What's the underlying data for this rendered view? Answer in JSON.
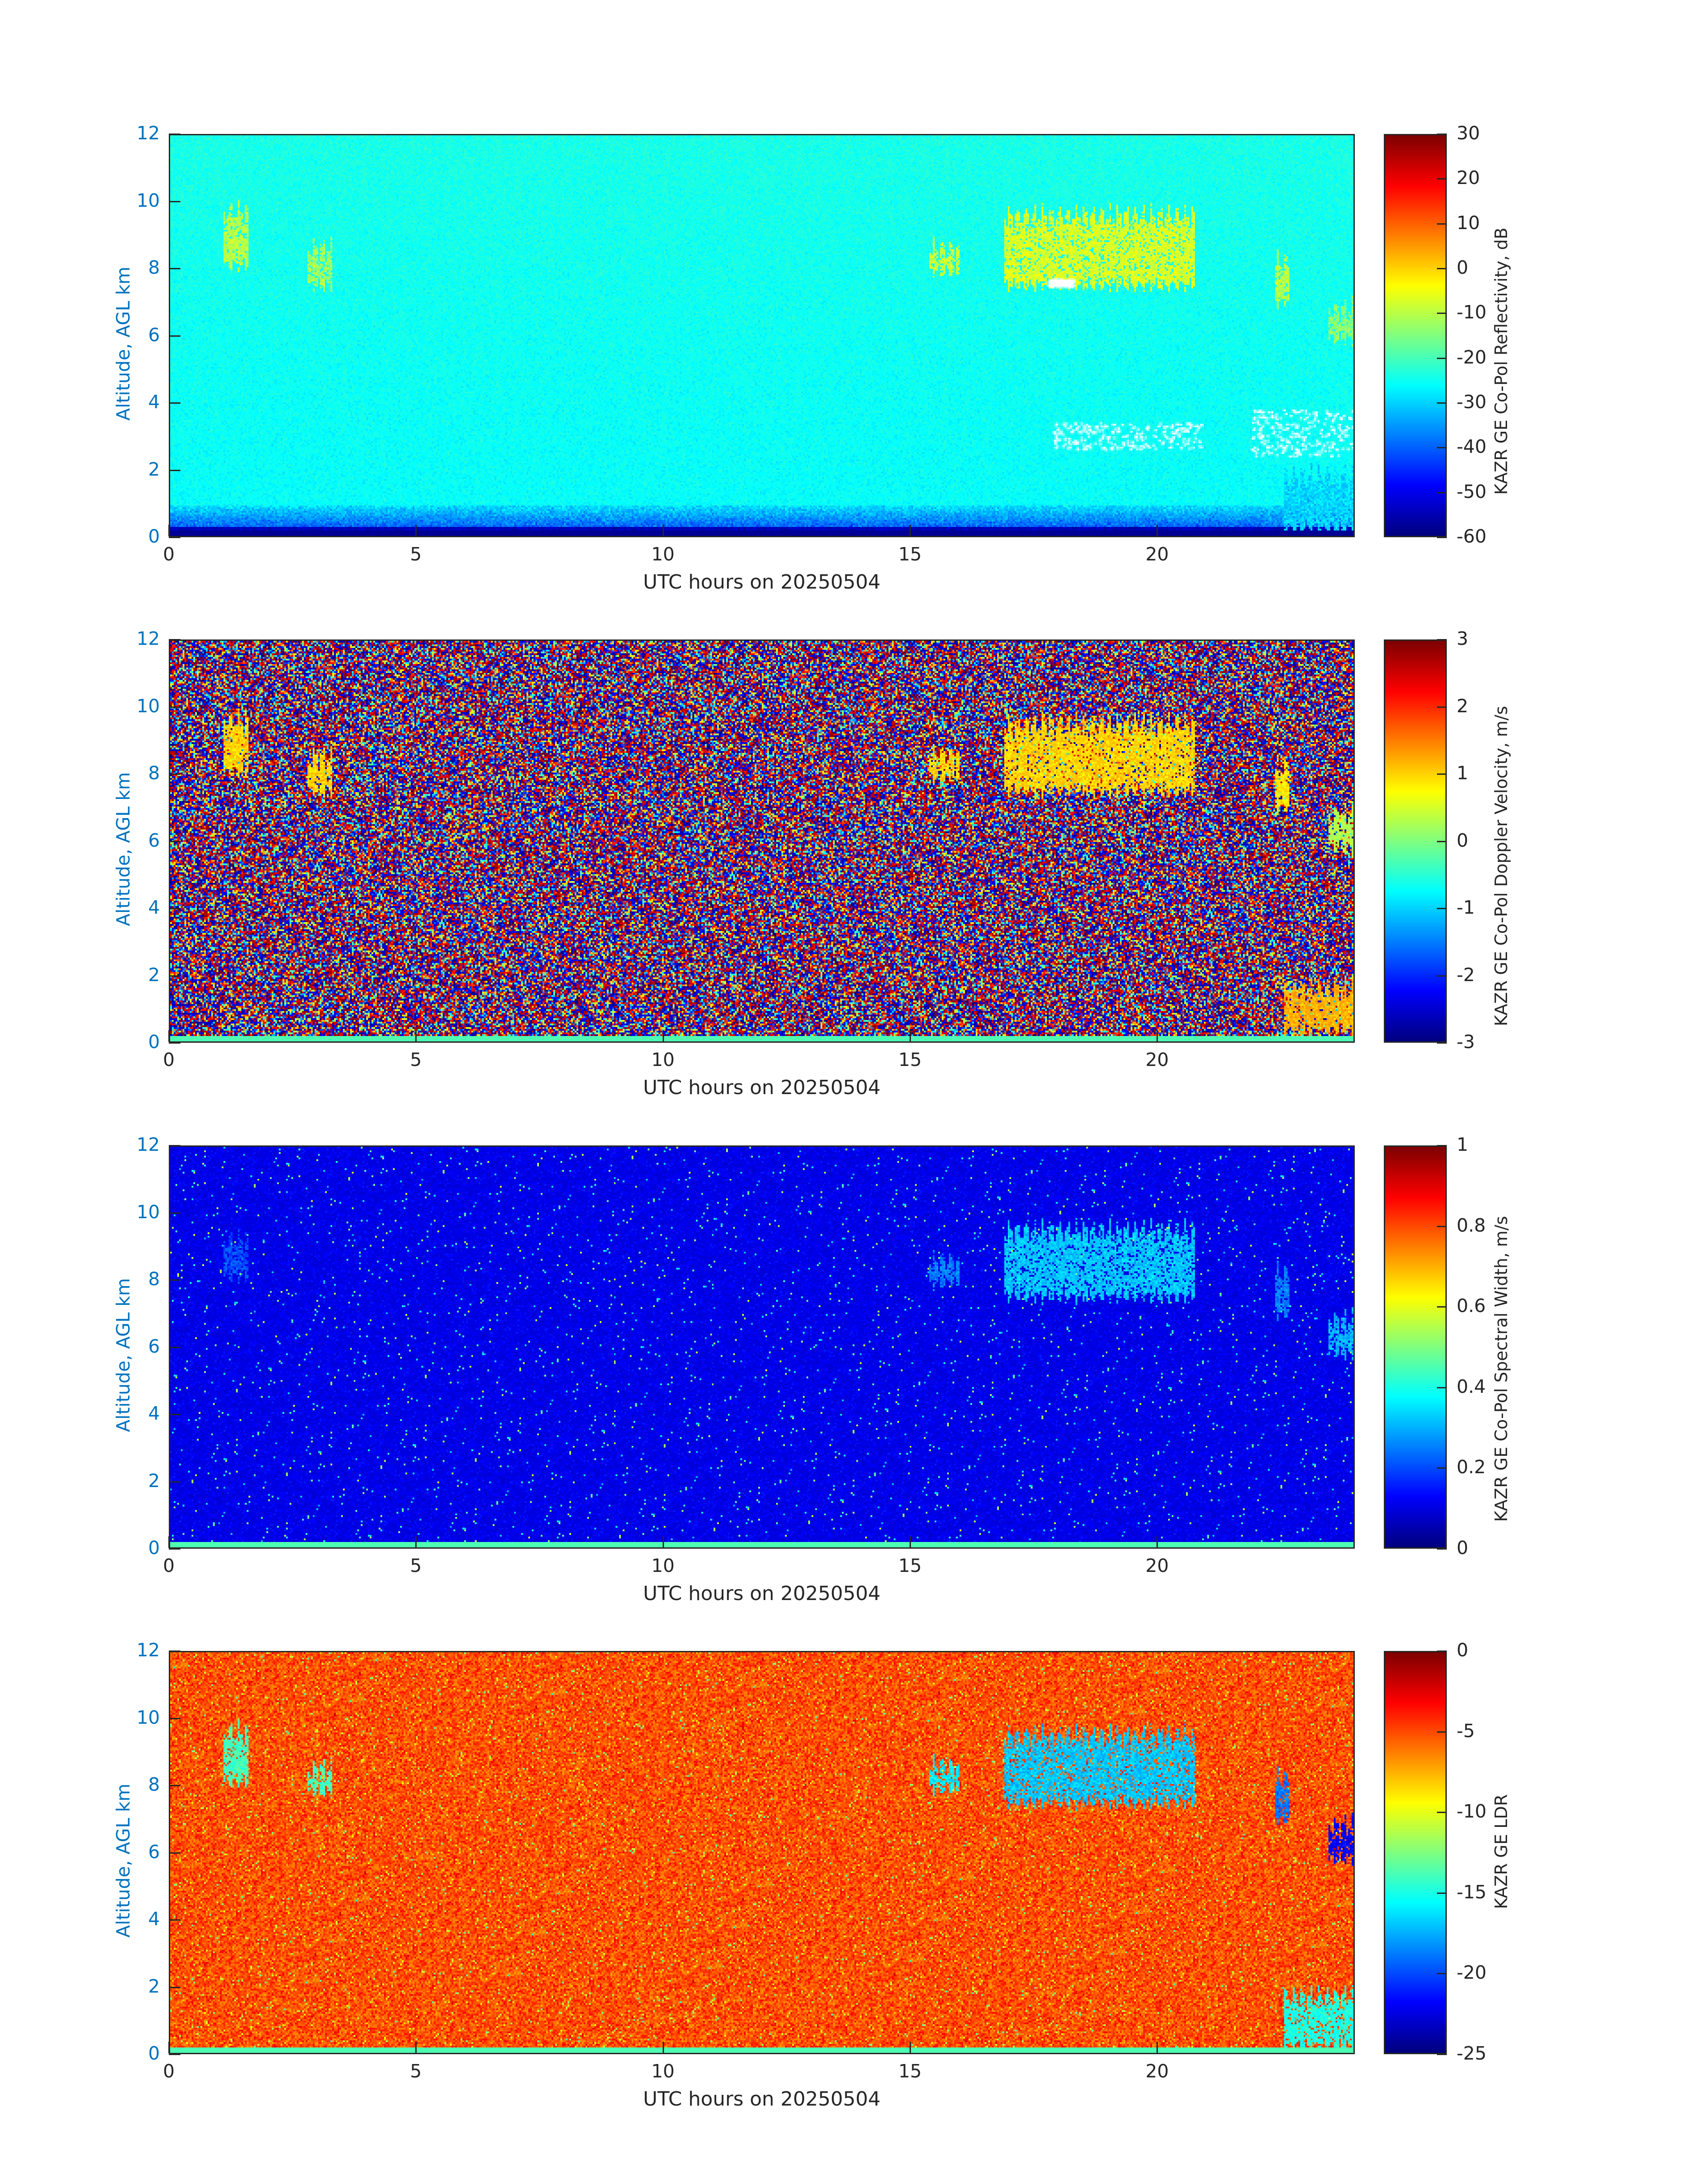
{
  "colors": {
    "axis": "#262626",
    "ylabel": "#0072bd",
    "background": "#ffffff",
    "colormap": "jet"
  },
  "chart_data": [
    {
      "type": "heatmap",
      "xlabel": "UTC hours on 20250504",
      "ylabel": "Altitude, AGL km",
      "xlim": [
        0,
        24
      ],
      "ylim": [
        0,
        12
      ],
      "xticks": [
        "0",
        "5",
        "10",
        "15",
        "20"
      ],
      "yticks": [
        "0",
        "2",
        "4",
        "6",
        "8",
        "10",
        "12"
      ],
      "colorbar": {
        "label": "KAZR GE Co-Pol Reflectivity, dB",
        "range": [
          -60,
          30
        ],
        "ticks": [
          "30",
          "20",
          "10",
          "0",
          "-10",
          "-20",
          "-30",
          "-40",
          "-50",
          "-60"
        ]
      },
      "background_level": -26,
      "features": [
        {
          "t0": 1.1,
          "t1": 1.6,
          "z0": 8.1,
          "z1": 9.7,
          "value": -10
        },
        {
          "t0": 2.8,
          "t1": 3.3,
          "z0": 7.5,
          "z1": 8.6,
          "value": -12
        },
        {
          "t0": 15.4,
          "t1": 16.0,
          "z0": 7.9,
          "z1": 8.6,
          "value": -8
        },
        {
          "t0": 16.9,
          "t1": 20.8,
          "z0": 7.5,
          "z1": 9.6,
          "value": -7
        },
        {
          "t0": 22.4,
          "t1": 22.7,
          "z0": 7.0,
          "z1": 8.2,
          "value": -10
        },
        {
          "t0": 23.5,
          "t1": 24.0,
          "z0": 5.9,
          "z1": 6.8,
          "value": -14
        },
        {
          "t0": 22.6,
          "t1": 24.0,
          "z0": 0.2,
          "z1": 1.8,
          "value": -30
        }
      ]
    },
    {
      "type": "heatmap",
      "xlabel": "UTC hours on 20250504",
      "ylabel": "Altitude, AGL km",
      "xlim": [
        0,
        24
      ],
      "ylim": [
        0,
        12
      ],
      "xticks": [
        "0",
        "5",
        "10",
        "15",
        "20"
      ],
      "yticks": [
        "0",
        "2",
        "4",
        "6",
        "8",
        "10",
        "12"
      ],
      "colorbar": {
        "label": "KAZR GE Co-Pol Doppler Velocity, m/s",
        "range": [
          -3,
          3
        ],
        "ticks": [
          "3",
          "2",
          "1",
          "0",
          "-1",
          "-2",
          "-3"
        ]
      },
      "background_level": "noise",
      "features": [
        {
          "t0": 1.1,
          "t1": 1.6,
          "z0": 8.1,
          "z1": 9.6,
          "value": 1.0
        },
        {
          "t0": 2.8,
          "t1": 3.3,
          "z0": 7.5,
          "z1": 8.5,
          "value": 1.0
        },
        {
          "t0": 15.4,
          "t1": 16.0,
          "z0": 7.9,
          "z1": 8.6,
          "value": 1.0
        },
        {
          "t0": 16.9,
          "t1": 20.8,
          "z0": 7.5,
          "z1": 9.5,
          "value": 1.0
        },
        {
          "t0": 22.4,
          "t1": 22.7,
          "z0": 7.0,
          "z1": 8.2,
          "value": 0.9
        },
        {
          "t0": 23.5,
          "t1": 24.0,
          "z0": 5.8,
          "z1": 6.8,
          "value": 0.3
        },
        {
          "t0": 22.6,
          "t1": 24.0,
          "z0": 0.3,
          "z1": 1.6,
          "value": 1.2
        }
      ]
    },
    {
      "type": "heatmap",
      "xlabel": "UTC hours on 20250504",
      "ylabel": "Altitude, AGL km",
      "xlim": [
        0,
        24
      ],
      "ylim": [
        0,
        12
      ],
      "xticks": [
        "0",
        "5",
        "10",
        "15",
        "20"
      ],
      "yticks": [
        "0",
        "2",
        "4",
        "6",
        "8",
        "10",
        "12"
      ],
      "colorbar": {
        "label": "KAZR GE Co-Pol Spectral Width, m/s",
        "range": [
          0,
          1
        ],
        "ticks": [
          "1",
          "0.8",
          "0.6",
          "0.4",
          "0.2",
          "0"
        ]
      },
      "background_level": 0.1,
      "features": [
        {
          "t0": 1.1,
          "t1": 1.6,
          "z0": 8.1,
          "z1": 9.2,
          "value": 0.2
        },
        {
          "t0": 15.4,
          "t1": 16.0,
          "z0": 7.9,
          "z1": 8.6,
          "value": 0.25
        },
        {
          "t0": 16.9,
          "t1": 20.8,
          "z0": 7.5,
          "z1": 9.5,
          "value": 0.32
        },
        {
          "t0": 22.4,
          "t1": 22.7,
          "z0": 7.0,
          "z1": 8.2,
          "value": 0.25
        },
        {
          "t0": 23.5,
          "t1": 24.0,
          "z0": 5.8,
          "z1": 6.8,
          "value": 0.3
        }
      ]
    },
    {
      "type": "heatmap",
      "xlabel": "UTC hours on 20250504",
      "ylabel": "Altitude, AGL km",
      "xlim": [
        0,
        24
      ],
      "ylim": [
        0,
        12
      ],
      "xticks": [
        "0",
        "5",
        "10",
        "15",
        "20"
      ],
      "yticks": [
        "0",
        "2",
        "4",
        "6",
        "8",
        "10",
        "12"
      ],
      "colorbar": {
        "label": "KAZR GE LDR",
        "range": [
          -25,
          0
        ],
        "ticks": [
          "0",
          "-5",
          "-10",
          "-15",
          "-20",
          "-25"
        ]
      },
      "background_level": -5,
      "features": [
        {
          "t0": 1.1,
          "t1": 1.6,
          "z0": 8.1,
          "z1": 9.6,
          "value": -14
        },
        {
          "t0": 2.8,
          "t1": 3.3,
          "z0": 7.8,
          "z1": 8.5,
          "value": -14
        },
        {
          "t0": 15.4,
          "t1": 16.0,
          "z0": 7.9,
          "z1": 8.6,
          "value": -16
        },
        {
          "t0": 16.9,
          "t1": 20.8,
          "z0": 7.5,
          "z1": 9.5,
          "value": -17
        },
        {
          "t0": 22.4,
          "t1": 22.7,
          "z0": 7.0,
          "z1": 8.2,
          "value": -19
        },
        {
          "t0": 23.5,
          "t1": 24.0,
          "z0": 5.8,
          "z1": 6.8,
          "value": -22
        },
        {
          "t0": 22.6,
          "t1": 24.0,
          "z0": 0.2,
          "z1": 1.7,
          "value": -15
        }
      ]
    }
  ]
}
